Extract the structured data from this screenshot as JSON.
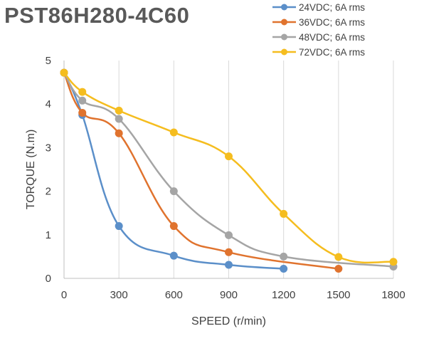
{
  "chart_data": {
    "type": "line",
    "title": "PST86H280-4C60",
    "xlabel": "SPEED (r/min)",
    "ylabel": "TORQUE (N.m)",
    "xlim": [
      0,
      1800
    ],
    "ylim": [
      0,
      5
    ],
    "xticks": [
      0,
      300,
      600,
      900,
      1200,
      1500,
      1800
    ],
    "yticks": [
      0,
      1,
      2,
      3,
      4,
      5
    ],
    "grid": "vertical",
    "legend_position": "top-right",
    "smooth": true,
    "series": [
      {
        "name": "24VDC; 6A rms",
        "color": "#5B8FC9",
        "x": [
          0,
          100,
          300,
          600,
          900,
          1200
        ],
        "y": [
          4.72,
          3.75,
          1.2,
          0.52,
          0.31,
          0.22
        ]
      },
      {
        "name": "36VDC; 6A rms",
        "color": "#E0732E",
        "x": [
          0,
          100,
          300,
          600,
          900,
          1500
        ],
        "y": [
          4.72,
          3.8,
          3.33,
          1.2,
          0.6,
          0.22
        ]
      },
      {
        "name": "48VDC; 6A rms",
        "color": "#A5A5A5",
        "x": [
          0,
          100,
          300,
          600,
          900,
          1200,
          1800
        ],
        "y": [
          4.72,
          4.08,
          3.66,
          2.0,
          0.99,
          0.5,
          0.27
        ]
      },
      {
        "name": "72VDC; 6A rms",
        "color": "#F5BD1F",
        "x": [
          0,
          100,
          300,
          600,
          900,
          1200,
          1500,
          1800
        ],
        "y": [
          4.72,
          4.28,
          3.85,
          3.35,
          2.8,
          1.48,
          0.49,
          0.38
        ]
      }
    ]
  }
}
